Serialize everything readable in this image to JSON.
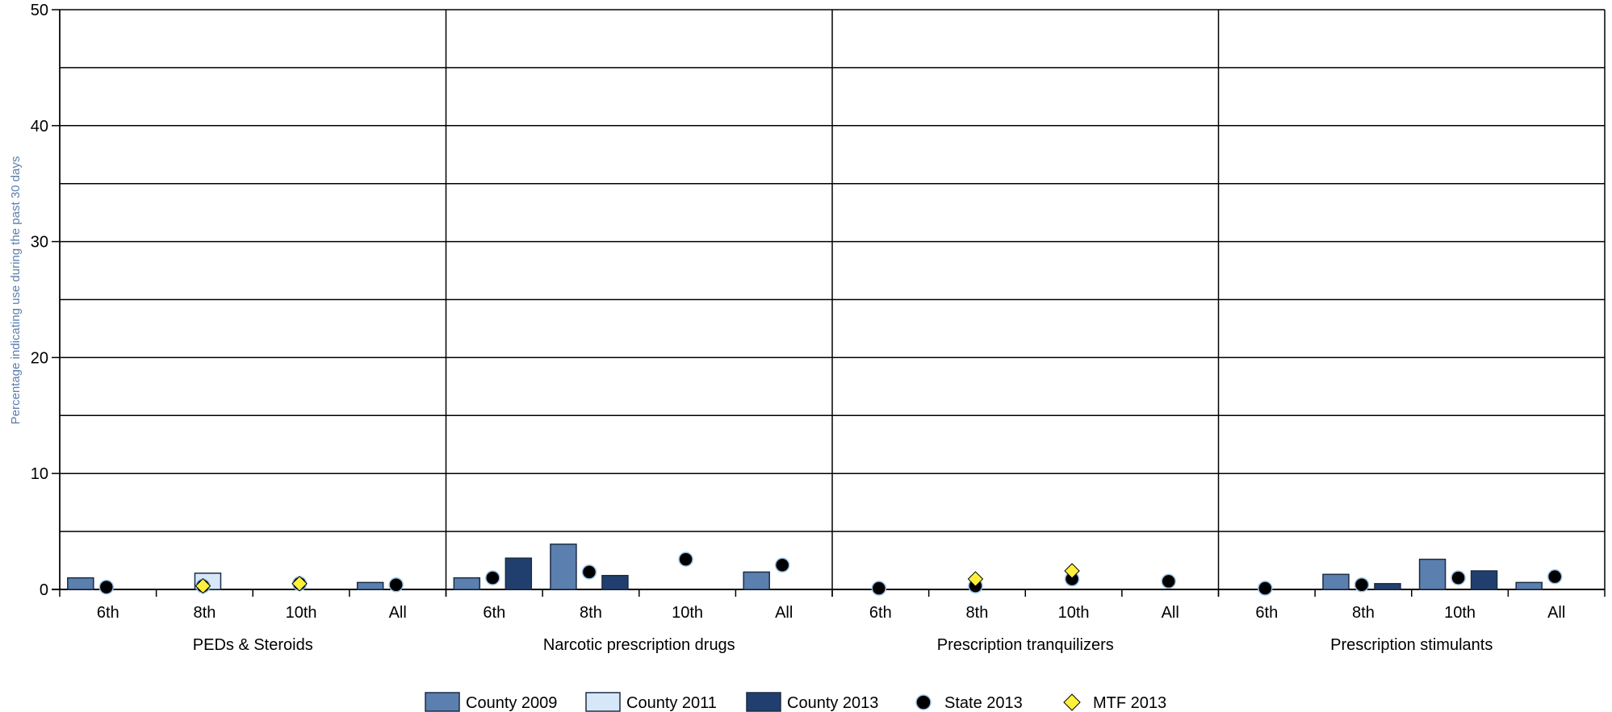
{
  "chart_data": {
    "type": "bar",
    "ylabel": "Percentage indicating use during the past 30 days",
    "ylim": [
      0,
      50
    ],
    "yticks": [
      0,
      10,
      20,
      30,
      40,
      50
    ],
    "grid": true,
    "legend_position": "bottom",
    "groups": [
      {
        "label": "PEDs & Steroids",
        "categories": [
          "6th",
          "8th",
          "10th",
          "All"
        ],
        "series": [
          {
            "name": "County 2009",
            "values": [
              1.0,
              0,
              0,
              0.6
            ]
          },
          {
            "name": "County 2011",
            "values": [
              0,
              1.4,
              0,
              0
            ]
          },
          {
            "name": "County 2013",
            "values": [
              0,
              0,
              0,
              0
            ]
          },
          {
            "name": "State 2013",
            "values": [
              0.2,
              0.3,
              0.5,
              0.4
            ]
          },
          {
            "name": "MTF 2013",
            "values": [
              null,
              0.3,
              0.5,
              null
            ]
          }
        ]
      },
      {
        "label": "Narcotic prescription drugs",
        "categories": [
          "6th",
          "8th",
          "10th",
          "All"
        ],
        "series": [
          {
            "name": "County 2009",
            "values": [
              1.0,
              3.9,
              0,
              1.5
            ]
          },
          {
            "name": "County 2011",
            "values": [
              0,
              0,
              0,
              0
            ]
          },
          {
            "name": "County 2013",
            "values": [
              2.7,
              1.2,
              0,
              0
            ]
          },
          {
            "name": "State 2013",
            "values": [
              1.0,
              1.5,
              2.6,
              2.1
            ]
          },
          {
            "name": "MTF 2013",
            "values": [
              null,
              null,
              null,
              null
            ]
          }
        ]
      },
      {
        "label": "Prescription tranquilizers",
        "categories": [
          "6th",
          "8th",
          "10th",
          "All"
        ],
        "series": [
          {
            "name": "County 2009",
            "values": [
              0,
              0,
              0,
              0
            ]
          },
          {
            "name": "County 2011",
            "values": [
              0,
              0,
              0,
              0
            ]
          },
          {
            "name": "County 2013",
            "values": [
              0,
              0,
              0,
              0
            ]
          },
          {
            "name": "State 2013",
            "values": [
              0.1,
              0.3,
              0.9,
              0.7
            ]
          },
          {
            "name": "MTF 2013",
            "values": [
              null,
              0.9,
              1.6,
              null
            ]
          }
        ]
      },
      {
        "label": "Prescription stimulants",
        "categories": [
          "6th",
          "8th",
          "10th",
          "All"
        ],
        "series": [
          {
            "name": "County 2009",
            "values": [
              0,
              1.3,
              2.6,
              0.6
            ]
          },
          {
            "name": "County 2011",
            "values": [
              0,
              0,
              0,
              0
            ]
          },
          {
            "name": "County 2013",
            "values": [
              0,
              0.5,
              1.6,
              0
            ]
          },
          {
            "name": "State 2013",
            "values": [
              0.1,
              0.4,
              1.0,
              1.1
            ]
          },
          {
            "name": "MTF 2013",
            "values": [
              null,
              null,
              null,
              null
            ]
          }
        ]
      }
    ],
    "legend": [
      {
        "name": "County 2009",
        "marker": "bar",
        "color": "#5b7fae"
      },
      {
        "name": "County 2011",
        "marker": "bar",
        "color": "#d6e8f8"
      },
      {
        "name": "County 2013",
        "marker": "bar",
        "color": "#213f6e"
      },
      {
        "name": "State 2013",
        "marker": "circle",
        "color": "#000000"
      },
      {
        "name": "MTF 2013",
        "marker": "diamond",
        "color": "#fff03c"
      }
    ]
  }
}
